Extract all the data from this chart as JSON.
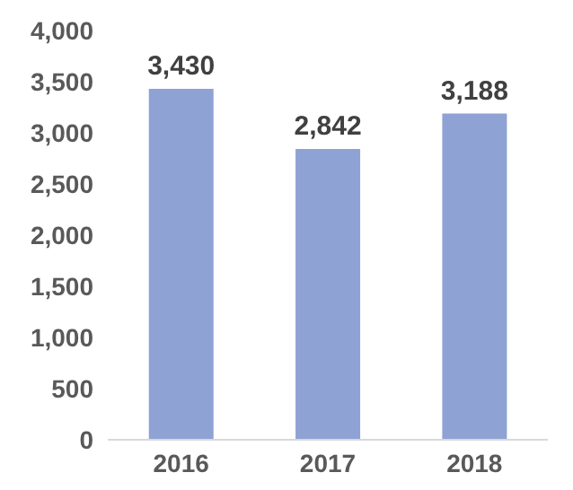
{
  "chart_data": {
    "type": "bar",
    "categories": [
      "2016",
      "2017",
      "2018"
    ],
    "values": [
      3430,
      2842,
      3188
    ],
    "color": "#8fa2d4",
    "ylim": [
      0,
      4000
    ],
    "yticks": [
      0,
      500,
      {
        "value": 1000,
        "label": "1,000"
      },
      {
        "value": 1500,
        "label": "1,500"
      },
      {
        "value": 2000,
        "label": "2,000"
      },
      {
        "value": 2500,
        "label": "2,500"
      },
      {
        "value": 3000,
        "label": "3,000"
      },
      {
        "value": 3500,
        "label": "3,500"
      },
      {
        "value": 4000,
        "label": "4,000"
      }
    ],
    "value_labels": [
      "3,430",
      "2,842",
      "3,188"
    ],
    "grid": false,
    "legend": false
  }
}
